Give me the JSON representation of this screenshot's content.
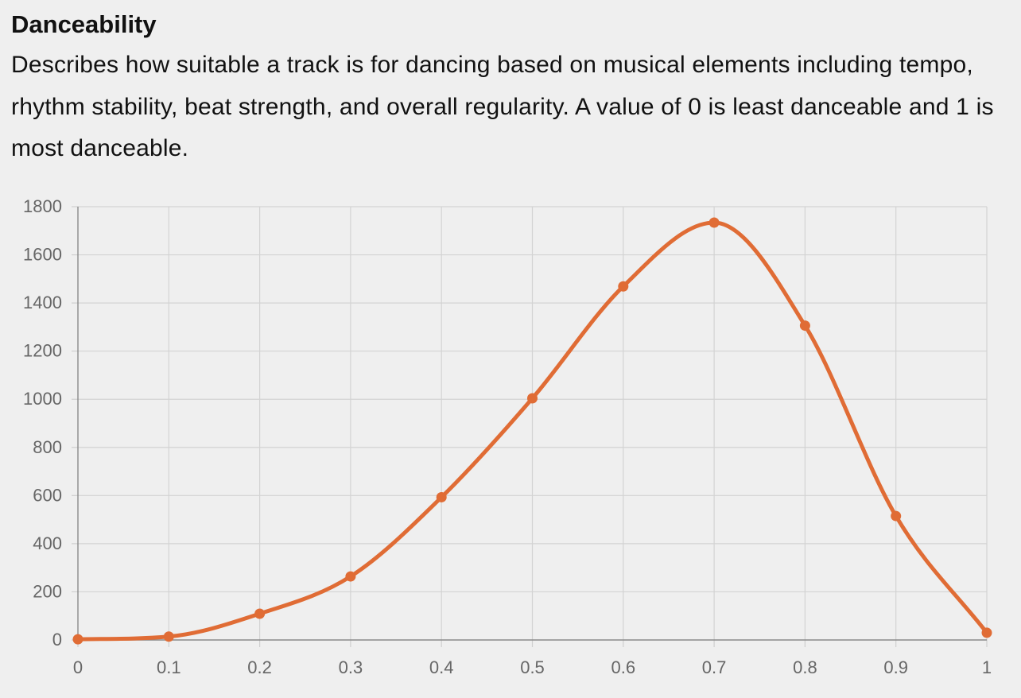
{
  "section": {
    "title": "Danceability",
    "description": "Describes how suitable a track is for dancing based on musical elements including tempo, rhythm stability, beat strength, and overall regularity. A value of 0 is least danceable and 1 is most danceable."
  },
  "chart_data": {
    "type": "line",
    "title": "",
    "xlabel": "",
    "ylabel": "",
    "x": [
      0,
      0.1,
      0.2,
      0.3,
      0.4,
      0.5,
      0.6,
      0.7,
      0.8,
      0.9,
      1
    ],
    "x_tick_labels": [
      "0",
      "0.1",
      "0.2",
      "0.3",
      "0.4",
      "0.5",
      "0.6",
      "0.7",
      "0.8",
      "0.9",
      "1"
    ],
    "y_ticks": [
      0,
      200,
      400,
      600,
      800,
      1000,
      1200,
      1400,
      1600,
      1800
    ],
    "y_tick_labels": [
      "0",
      "200",
      "400",
      "600",
      "800",
      "1000",
      "1200",
      "1400",
      "1600",
      "1800"
    ],
    "series": [
      {
        "values": [
          3,
          14,
          109,
          264,
          593,
          1004,
          1469,
          1734,
          1306,
          515,
          30
        ],
        "color": "#e06c35"
      }
    ],
    "ylim": [
      0,
      1800
    ],
    "xlim": [
      0,
      1
    ],
    "grid": true,
    "legend": "none",
    "line_style": "smooth"
  }
}
